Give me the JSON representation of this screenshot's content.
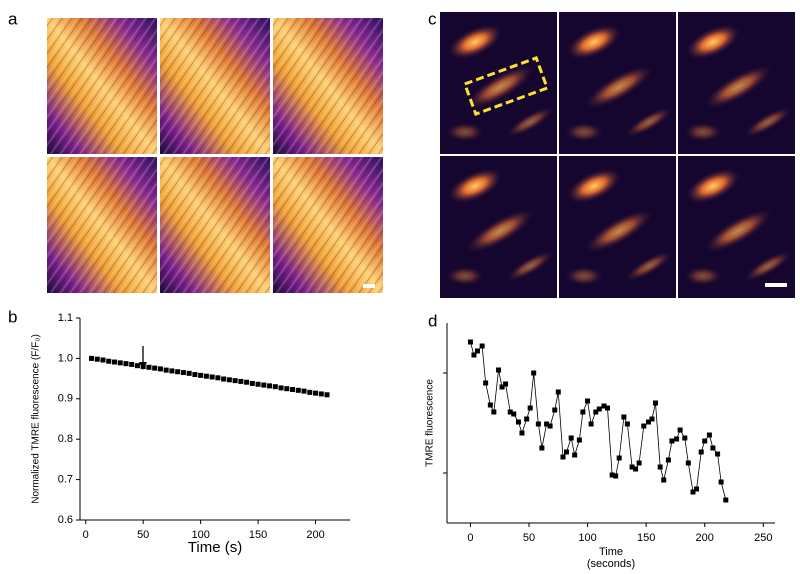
{
  "panels": [
    "a",
    "b",
    "c",
    "d"
  ],
  "chart_data": [
    {
      "type": "line",
      "ylabel": "Normalized TMRE fluorescence (F/F₀)",
      "xlabel": "Time (s)",
      "x": [
        5,
        10,
        15,
        20,
        25,
        30,
        35,
        40,
        45,
        50,
        55,
        60,
        65,
        70,
        75,
        80,
        85,
        90,
        95,
        100,
        105,
        110,
        115,
        120,
        125,
        130,
        135,
        140,
        145,
        150,
        155,
        160,
        165,
        170,
        175,
        180,
        185,
        190,
        195,
        200,
        205,
        210
      ],
      "values": [
        1.0,
        0.998,
        0.996,
        0.993,
        0.991,
        0.989,
        0.987,
        0.985,
        0.982,
        0.98,
        0.978,
        0.976,
        0.974,
        0.971,
        0.969,
        0.967,
        0.965,
        0.963,
        0.96,
        0.958,
        0.956,
        0.954,
        0.952,
        0.949,
        0.947,
        0.945,
        0.943,
        0.941,
        0.938,
        0.936,
        0.934,
        0.932,
        0.93,
        0.927,
        0.925,
        0.923,
        0.921,
        0.919,
        0.916,
        0.914,
        0.912,
        0.91
      ],
      "color": "#000000",
      "xlim": [
        -5,
        230
      ],
      "ylim": [
        0.6,
        1.1
      ],
      "xticks": [
        0,
        50,
        100,
        150,
        200
      ],
      "yticks": [
        0.6,
        0.7,
        0.8,
        0.9,
        {
          "value": 1,
          "label": "1.0"
        },
        1.1
      ]
    },
    {
      "type": "line",
      "ylabel": "TMRE fluorescence",
      "xlabel": [
        "Time",
        "(seconds)"
      ],
      "x": [
        0,
        3,
        6,
        10,
        13,
        17,
        20,
        24,
        27,
        30,
        34,
        37,
        41,
        44,
        48,
        51,
        54,
        58,
        61,
        65,
        68,
        72,
        75,
        79,
        82,
        86,
        89,
        93,
        96,
        100,
        103,
        107,
        110,
        114,
        117,
        121,
        124,
        127,
        131,
        134,
        138,
        141,
        144,
        148,
        152,
        155,
        158,
        162,
        165,
        169,
        172,
        176,
        179,
        183,
        186,
        190,
        193,
        197,
        200,
        204,
        207,
        211,
        214,
        218
      ],
      "values": [
        0.905,
        0.84,
        0.86,
        0.885,
        0.7,
        0.59,
        0.555,
        0.765,
        0.68,
        0.695,
        0.555,
        0.545,
        0.505,
        0.45,
        0.52,
        0.575,
        0.75,
        0.495,
        0.375,
        0.495,
        0.485,
        0.565,
        0.655,
        0.33,
        0.355,
        0.425,
        0.34,
        0.415,
        0.555,
        0.61,
        0.495,
        0.555,
        0.57,
        0.585,
        0.575,
        0.24,
        0.235,
        0.325,
        0.53,
        0.495,
        0.28,
        0.27,
        0.3,
        0.485,
        0.505,
        0.52,
        0.6,
        0.28,
        0.215,
        0.315,
        0.41,
        0.42,
        0.465,
        0.425,
        0.3,
        0.155,
        0.17,
        0.355,
        0.41,
        0.44,
        0.375,
        0.345,
        0.205,
        0.115
      ],
      "color": "#000000",
      "xlim": [
        -20,
        260
      ],
      "ylim": [
        0,
        1
      ],
      "xticks": [
        0,
        50,
        100,
        150,
        200,
        250
      ],
      "yticks": [
        0.25,
        0.75
      ]
    }
  ]
}
